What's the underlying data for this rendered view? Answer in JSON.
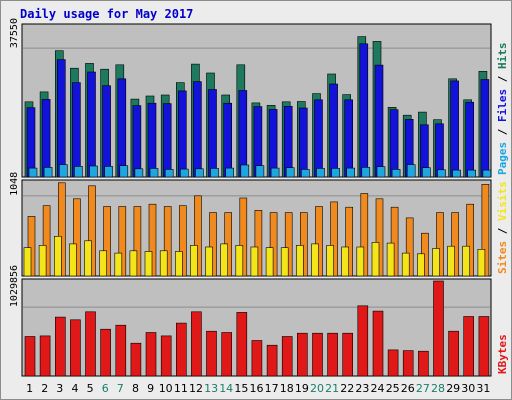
{
  "title": "Daily usage for May 2017",
  "colors": {
    "hits": "#1e7a5e",
    "files": "#1212d8",
    "pages": "#1ea6e0",
    "visits": "#f08a1e",
    "sites": "#f4e41a",
    "kbytes": "#e01818",
    "weekend_day": "#18806a",
    "weekday_day": "#000000",
    "panel_bg": "#bfbfbf",
    "grid": "#8c8c8c"
  },
  "chart_data": {
    "type": "bar",
    "x": [
      "1",
      "2",
      "3",
      "4",
      "5",
      "6",
      "7",
      "8",
      "9",
      "10",
      "11",
      "12",
      "13",
      "14",
      "15",
      "16",
      "17",
      "18",
      "19",
      "20",
      "21",
      "22",
      "23",
      "24",
      "25",
      "26",
      "27",
      "28",
      "29",
      "30",
      "31"
    ],
    "weekend_days": [
      "6",
      "7",
      "13",
      "14",
      "20",
      "21",
      "27",
      "28"
    ],
    "panels": [
      {
        "id": "usage",
        "axis_max_label": "37550",
        "axis_max": 37550,
        "ymax": 44000,
        "legend_parts": [
          {
            "text": "Pages",
            "color": "#1ea6e0"
          },
          {
            "text": " / ",
            "color": "#000000"
          },
          {
            "text": "Files",
            "color": "#1212d8"
          },
          {
            "text": " / ",
            "color": "#000000"
          },
          {
            "text": "Hits",
            "color": "#1e7a5e"
          }
        ],
        "series": [
          {
            "name": "Hits",
            "color": "#1e7a5e",
            "values": [
              21900,
              24800,
              36800,
              31700,
              33100,
              31400,
              32700,
              22700,
              23600,
              23900,
              27500,
              32900,
              30300,
              23900,
              32700,
              21600,
              20900,
              21900,
              22000,
              24300,
              30000,
              24000,
              40900,
              39500,
              20300,
              18000,
              18900,
              16700,
              28600,
              22500,
              30800
            ]
          },
          {
            "name": "Files",
            "color": "#1212d8",
            "values": [
              20200,
              22600,
              34200,
              27500,
              30600,
              26600,
              28600,
              20800,
              21500,
              21400,
              25100,
              27800,
              25500,
              21500,
              25200,
              20500,
              19700,
              20600,
              20100,
              22500,
              27100,
              22500,
              38800,
              32600,
              19600,
              16800,
              15200,
              15500,
              28000,
              21800,
              28400
            ]
          },
          {
            "name": "Pages",
            "color": "#1ea6e0",
            "values": [
              2600,
              2800,
              3600,
              3100,
              3200,
              3100,
              3300,
              2400,
              2500,
              2200,
              2300,
              2400,
              2500,
              2600,
              3500,
              3300,
              2600,
              2700,
              2200,
              2500,
              2500,
              2600,
              2800,
              3000,
              2200,
              3600,
              2700,
              2100,
              2000,
              2000,
              2000
            ]
          }
        ]
      },
      {
        "id": "visits_sites",
        "axis_max_label": "1048",
        "axis_max": 1048,
        "ymax": 1230,
        "legend_parts": [
          {
            "text": "Sites",
            "color": "#f08a1e"
          },
          {
            "text": " / ",
            "color": "#000000"
          },
          {
            "text": "Visits",
            "color": "#f4e41a"
          }
        ],
        "series": [
          {
            "name": "Visits",
            "color": "#f08a1e",
            "values": [
              780,
              920,
              1220,
              1010,
              1180,
              910,
              910,
              910,
              940,
              910,
              920,
              1050,
              830,
              830,
              1020,
              860,
              830,
              830,
              830,
              910,
              970,
              900,
              1080,
              1010,
              900,
              760,
              560,
              830,
              830,
              940,
              1200
            ]
          },
          {
            "name": "Sites",
            "color": "#f4e41a",
            "values": [
              370,
              400,
              520,
              420,
              460,
              330,
              300,
              330,
              320,
              330,
              320,
              400,
              380,
              420,
              400,
              380,
              370,
              370,
              400,
              420,
              400,
              380,
              380,
              440,
              430,
              300,
              290,
              360,
              390,
              390,
              350
            ]
          }
        ]
      },
      {
        "id": "kbytes",
        "axis_max_label": "1029856",
        "axis_max": 1029856,
        "ymax": 1420000,
        "legend_parts": [
          {
            "text": "KBytes",
            "color": "#e01818"
          }
        ],
        "series": [
          {
            "name": "KBytes",
            "color": "#e01818",
            "values": [
              590000,
              600000,
              880000,
              840000,
              960000,
              700000,
              760000,
              490000,
              650000,
              600000,
              790000,
              960000,
              670000,
              650000,
              950000,
              530000,
              460000,
              590000,
              640000,
              640000,
              640000,
              640000,
              1050000,
              970000,
              390000,
              380000,
              370000,
              1420000,
              670000,
              890000,
              890000
            ]
          }
        ]
      }
    ]
  }
}
